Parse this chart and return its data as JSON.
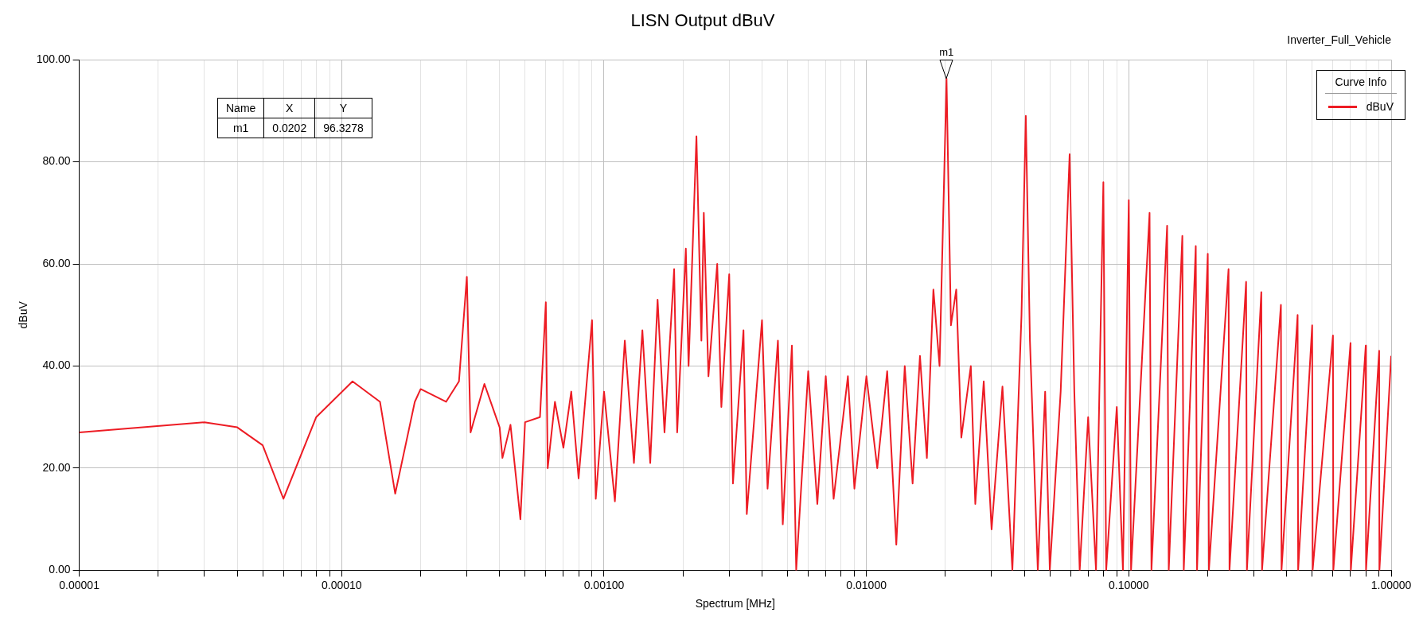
{
  "chart_data": {
    "type": "line",
    "title": "LISN Output dBuV",
    "subtitle": "Inverter_Full_Vehicle",
    "xlabel": "Spectrum [MHz]",
    "ylabel": "dBuV",
    "legend_title": "Curve Info",
    "legend": "top right",
    "grid": true,
    "log": "x",
    "marker": "none",
    "line_style": "solid",
    "xlim": [
      1e-05,
      1
    ],
    "xticks": [
      {
        "value": 1e-05,
        "label": "0.00001"
      },
      {
        "value": 2e-05,
        "label": null
      },
      {
        "value": 3e-05,
        "label": null
      },
      {
        "value": 4e-05,
        "label": null
      },
      {
        "value": 5e-05,
        "label": null
      },
      {
        "value": 6e-05,
        "label": null
      },
      {
        "value": 7e-05,
        "label": null
      },
      {
        "value": 8e-05,
        "label": null
      },
      {
        "value": 9e-05,
        "label": null
      },
      {
        "value": 0.0001,
        "label": "0.00010"
      },
      {
        "value": 0.0002,
        "label": null
      },
      {
        "value": 0.0003,
        "label": null
      },
      {
        "value": 0.0004,
        "label": null
      },
      {
        "value": 0.0005,
        "label": null
      },
      {
        "value": 0.0006,
        "label": null
      },
      {
        "value": 0.0007,
        "label": null
      },
      {
        "value": 0.0008,
        "label": null
      },
      {
        "value": 0.0009,
        "label": null
      },
      {
        "value": 0.001,
        "label": "0.00100"
      },
      {
        "value": 0.002,
        "label": null
      },
      {
        "value": 0.003,
        "label": null
      },
      {
        "value": 0.004,
        "label": null
      },
      {
        "value": 0.005,
        "label": null
      },
      {
        "value": 0.006,
        "label": null
      },
      {
        "value": 0.007,
        "label": null
      },
      {
        "value": 0.008,
        "label": null
      },
      {
        "value": 0.009,
        "label": null
      },
      {
        "value": 0.01,
        "label": "0.01000"
      },
      {
        "value": 0.02,
        "label": null
      },
      {
        "value": 0.03,
        "label": null
      },
      {
        "value": 0.04,
        "label": null
      },
      {
        "value": 0.05,
        "label": null
      },
      {
        "value": 0.06,
        "label": null
      },
      {
        "value": 0.07,
        "label": null
      },
      {
        "value": 0.08,
        "label": null
      },
      {
        "value": 0.09,
        "label": null
      },
      {
        "value": 0.1,
        "label": "0.10000"
      },
      {
        "value": 0.2,
        "label": null
      },
      {
        "value": 0.3,
        "label": null
      },
      {
        "value": 0.4,
        "label": null
      },
      {
        "value": 0.5,
        "label": null
      },
      {
        "value": 0.6,
        "label": null
      },
      {
        "value": 0.7,
        "label": null
      },
      {
        "value": 0.8,
        "label": null
      },
      {
        "value": 0.9,
        "label": null
      },
      {
        "value": 1,
        "label": "1.00000"
      }
    ],
    "ylim": [
      0,
      100
    ],
    "yticks": [
      {
        "value": 0,
        "label": "0.00"
      },
      {
        "value": 20,
        "label": "20.00"
      },
      {
        "value": 40,
        "label": "40.00"
      },
      {
        "value": 60,
        "label": "60.00"
      },
      {
        "value": 80,
        "label": "80.00"
      },
      {
        "value": 100,
        "label": "100.00"
      }
    ],
    "annotations": [
      "Name",
      "X",
      "Y",
      "m1",
      "0.0202",
      "96.3278",
      {
        "text": "m1",
        "x": 0.0202,
        "y": 96.3
      }
    ],
    "series": [
      {
        "name": "dBuV",
        "color": "#ed1c24",
        "x": [
          1e-05,
          3e-05,
          4e-05,
          5e-05,
          6e-05,
          8e-05,
          0.00011,
          0.00014,
          0.00016,
          0.00019,
          0.0002,
          0.00025,
          0.00028,
          0.0003,
          0.00031,
          0.00035,
          0.0004,
          0.00041,
          0.00044,
          0.00048,
          0.0005,
          0.00057,
          0.0006,
          0.00061,
          0.00065,
          0.0007,
          0.00075,
          0.0008,
          0.0009,
          0.00093,
          0.001,
          0.0011,
          0.0012,
          0.0013,
          0.0014,
          0.0015,
          0.0016,
          0.0017,
          0.00185,
          0.0019,
          0.00205,
          0.0021,
          0.00225,
          0.00235,
          0.0024,
          0.0025,
          0.0027,
          0.0028,
          0.003,
          0.0031,
          0.0034,
          0.0035,
          0.004,
          0.0042,
          0.0046,
          0.0048,
          0.0052,
          0.0054,
          0.006,
          0.0065,
          0.007,
          0.0075,
          0.0085,
          0.009,
          0.01,
          0.011,
          0.012,
          0.013,
          0.014,
          0.015,
          0.016,
          0.017,
          0.018,
          0.019,
          0.0202,
          0.021,
          0.022,
          0.023,
          0.025,
          0.026,
          0.028,
          0.03,
          0.033,
          0.036,
          0.039,
          0.0405,
          0.042,
          0.045,
          0.048,
          0.05,
          0.055,
          0.0595,
          0.062,
          0.065,
          0.07,
          0.075,
          0.08,
          0.082,
          0.09,
          0.095,
          0.1,
          0.102,
          0.12,
          0.122,
          0.14,
          0.142,
          0.16,
          0.162,
          0.18,
          0.182,
          0.2,
          0.202,
          0.24,
          0.242,
          0.28,
          0.282,
          0.32,
          0.322,
          0.38,
          0.382,
          0.44,
          0.442,
          0.5,
          0.502,
          0.6,
          0.602,
          0.7,
          0.702,
          0.8,
          0.802,
          0.9,
          0.902,
          1
        ],
        "values": [
          27,
          29,
          28,
          24.5,
          14,
          30,
          37,
          33,
          15,
          33,
          35.5,
          33,
          37,
          57.5,
          27,
          36.5,
          28,
          22,
          28.5,
          10,
          29,
          30,
          52.5,
          20,
          33,
          24,
          35,
          18,
          49,
          14,
          35,
          13.5,
          45,
          21,
          47,
          21,
          53,
          27,
          59,
          27,
          63,
          40,
          85,
          45,
          70,
          38,
          60,
          32,
          58,
          17,
          47,
          11,
          49,
          16,
          45,
          9,
          44,
          0,
          39,
          13,
          38,
          14,
          38,
          16,
          38,
          20,
          39,
          5,
          40,
          17,
          42,
          22,
          55,
          40,
          96.3,
          48,
          55,
          26,
          40,
          13,
          37,
          8,
          36,
          0,
          50,
          89,
          45,
          0,
          35,
          0,
          35,
          81.5,
          35,
          0,
          30,
          0,
          76,
          0,
          32,
          0,
          72.5,
          0,
          70,
          0,
          67.5,
          0,
          65.5,
          0,
          63.5,
          0,
          62,
          0,
          59,
          0,
          56.5,
          0,
          54.5,
          0,
          52,
          0,
          50,
          0,
          48,
          0,
          46,
          0,
          44.5,
          0,
          44,
          0,
          43,
          0,
          42
        ]
      }
    ]
  }
}
